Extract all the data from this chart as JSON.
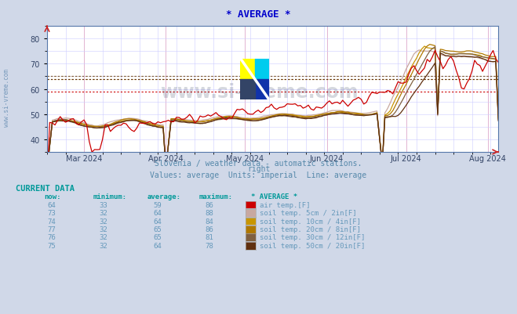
{
  "title": "* AVERAGE *",
  "title_color": "#0000cc",
  "fig_bg_color": "#d0d8e8",
  "plot_bg_color": "#ffffff",
  "subtitle1": "Slovenia / weather data - automatic stations.",
  "subtitle2": "right",
  "subtitle3": "Values: average  Units: imperial  Line: average",
  "subtitle_color": "#5588aa",
  "watermark": "www.si-vreme.com",
  "ylim": [
    35,
    85
  ],
  "yticks": [
    40,
    50,
    60,
    70,
    80
  ],
  "xlabel_color": "#334466",
  "xticklabels": [
    "Mar 2024",
    "Apr 2024",
    "May 2024",
    "Jun 2024",
    "Jul 2024",
    "Aug 2024"
  ],
  "grid_color_major": "#ff9999",
  "grid_color_minor": "#ccccff",
  "line_colors": {
    "air_temp": "#cc0000",
    "soil_5cm": "#c8a8a0",
    "soil_10cm": "#c89600",
    "soil_20cm": "#b07800",
    "soil_30cm": "#806040",
    "soil_50cm": "#603010"
  },
  "avg_hlines": [
    59,
    64,
    64,
    65,
    65,
    64
  ],
  "avg_hline_colors": [
    "#cc0000",
    "#c8a8a0",
    "#c89600",
    "#b07800",
    "#806040",
    "#603010"
  ],
  "table_header_color": "#009999",
  "table_data_color": "#6699bb",
  "table_swatch_colors": [
    "#cc0000",
    "#c8a8a0",
    "#c89600",
    "#b07800",
    "#806040",
    "#603010"
  ],
  "table_rows": [
    {
      "now": 64,
      "minimum": 33,
      "average": 59,
      "maximum": 86,
      "label": "air temp.[F]"
    },
    {
      "now": 73,
      "minimum": 32,
      "average": 64,
      "maximum": 88,
      "label": "soil temp. 5cm / 2in[F]"
    },
    {
      "now": 74,
      "minimum": 32,
      "average": 64,
      "maximum": 84,
      "label": "soil temp. 10cm / 4in[F]"
    },
    {
      "now": 77,
      "minimum": 32,
      "average": 65,
      "maximum": 86,
      "label": "soil temp. 20cm / 8in[F]"
    },
    {
      "now": 76,
      "minimum": 32,
      "average": 65,
      "maximum": 81,
      "label": "soil temp. 30cm / 12in[F]"
    },
    {
      "now": 75,
      "minimum": 32,
      "average": 64,
      "maximum": 78,
      "label": "soil temp. 50cm / 20in[F]"
    }
  ]
}
